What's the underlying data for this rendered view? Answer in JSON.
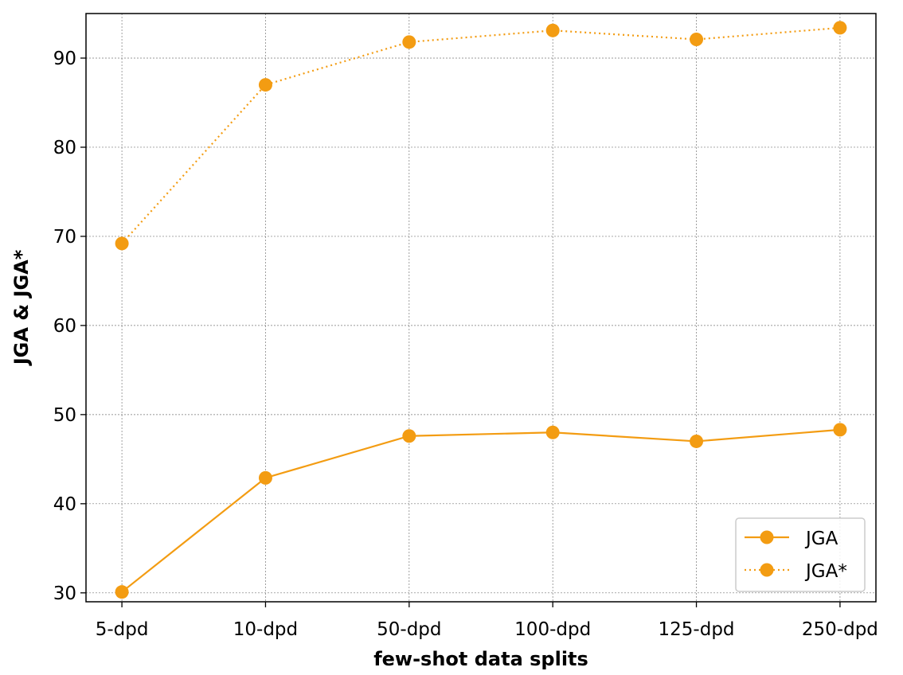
{
  "chart_data": {
    "type": "line",
    "title": "",
    "xlabel": "few-shot data splits",
    "ylabel": "JGA & JGA*",
    "categories": [
      "5-dpd",
      "10-dpd",
      "50-dpd",
      "100-dpd",
      "125-dpd",
      "250-dpd"
    ],
    "ylim": [
      29,
      95
    ],
    "yticks": [
      30,
      40,
      50,
      60,
      70,
      80,
      90
    ],
    "grid": true,
    "legend_position": "lower-right",
    "series": [
      {
        "name": "JGA",
        "values": [
          30.1,
          42.9,
          47.6,
          48.0,
          47.0,
          48.3
        ],
        "color": "#f39c12",
        "line_style": "solid",
        "marker": "circle"
      },
      {
        "name": "JGA*",
        "values": [
          69.2,
          87.0,
          91.8,
          93.1,
          92.1,
          93.4
        ],
        "color": "#f39c12",
        "line_style": "dotted",
        "marker": "circle"
      }
    ]
  }
}
